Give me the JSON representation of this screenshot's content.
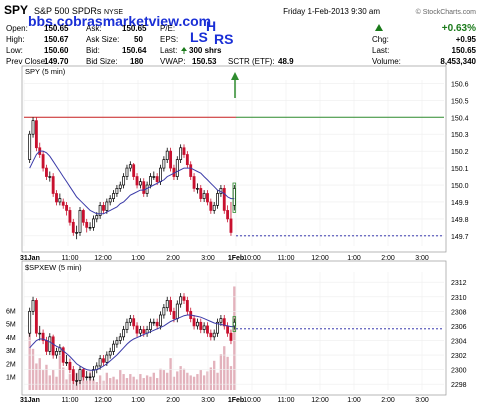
{
  "header": {
    "symbol": "SPY",
    "name": "S&P 500 SPDRs",
    "exchange": "NYSE",
    "date_label": "Friday  1-Feb-2013  9:30 am",
    "credit": "© StockCharts.com",
    "watermark": "bbs.cobrasmarketview.com",
    "stats": {
      "open_label": "Open:",
      "open": "150.65",
      "high_label": "High:",
      "high": "150.67",
      "low_label": "Low:",
      "low": "150.60",
      "prev_close_label": "Prev Close:",
      "prev_close": "149.70",
      "ask_label": "Ask:",
      "ask": "150.65",
      "ask_size_label": "Ask Size:",
      "ask_size": "50",
      "bid_label": "Bid:",
      "bid": "150.64",
      "bid_size_label": "Bid Size:",
      "bid_size": "180",
      "pe_label": "P/E:",
      "pe": "",
      "eps_label": "EPS:",
      "eps": "",
      "last_shares_label": "Last:",
      "last_shares": "300 shrs",
      "vwap_label": "VWAP:",
      "vwap": "150.53",
      "sctr_label": "SCTR (ETF):",
      "sctr": "48.9",
      "change_pct": "+0.63%",
      "chg_label": "Chg:",
      "chg": "+0.95",
      "last_label": "Last:",
      "last": "150.65",
      "volume_label": "Volume:",
      "volume": "8,453,340"
    }
  },
  "colors": {
    "up": "#000000",
    "down": "#c8102e",
    "ma": "#3a3aa8",
    "prev_close_line": "#c82020",
    "future_level": "#1a1aa0",
    "arrow": "#2e8b2e",
    "watermark": "#1a2fd6",
    "change": "#1a7a1a"
  },
  "chart_data": [
    {
      "type": "candlestick",
      "title": "SPY (5 min)",
      "ylim": [
        149.64,
        150.62
      ],
      "yticks": [
        149.7,
        149.8,
        149.9,
        150.0,
        150.1,
        150.2,
        150.3,
        150.4,
        150.5,
        150.6
      ],
      "x_tick_labels": [
        "31Jan",
        "11:00",
        "12:00",
        "1:00",
        "2:00",
        "3:00",
        "1Feb",
        "10:00",
        "11:00",
        "12:00",
        "1:00",
        "2:00",
        "3:00"
      ],
      "prev_close": 150.4,
      "future_level": 149.7,
      "annotations": [
        "LS",
        "H",
        "RS"
      ],
      "open": [
        150.15,
        150.3,
        150.38,
        150.22,
        150.18,
        150.1,
        150.05,
        150.05,
        149.95,
        149.9,
        149.9,
        149.88,
        149.85,
        149.78,
        149.72,
        149.72,
        149.85,
        149.78,
        149.75,
        149.75,
        149.8,
        149.82,
        149.88,
        149.85,
        149.9,
        149.92,
        149.95,
        149.98,
        150.0,
        150.05,
        150.1,
        150.12,
        150.05,
        150.0,
        150.02,
        149.95,
        150.0,
        150.05,
        150.05,
        150.02,
        150.1,
        150.15,
        150.2,
        150.1,
        150.05,
        150.15,
        150.22,
        150.18,
        150.12,
        150.05,
        149.98,
        149.98,
        149.92,
        149.95,
        149.9,
        149.85,
        149.88,
        149.95,
        149.98,
        149.85,
        149.8,
        149.88
      ],
      "close": [
        150.3,
        150.38,
        150.22,
        150.18,
        150.1,
        150.05,
        150.05,
        149.95,
        149.9,
        149.92,
        149.88,
        149.85,
        149.78,
        149.72,
        149.72,
        149.85,
        149.78,
        149.75,
        149.75,
        149.8,
        149.82,
        149.88,
        149.85,
        149.9,
        149.92,
        149.95,
        149.98,
        150.0,
        150.05,
        150.1,
        150.12,
        150.05,
        150.0,
        150.02,
        149.95,
        150.0,
        150.05,
        150.05,
        150.02,
        150.1,
        150.15,
        150.2,
        150.1,
        150.05,
        150.15,
        150.22,
        150.18,
        150.12,
        150.05,
        149.98,
        149.98,
        149.92,
        149.95,
        149.9,
        149.85,
        149.88,
        149.95,
        149.98,
        149.85,
        149.8,
        149.72,
        149.98
      ],
      "high": [
        150.32,
        150.4,
        150.4,
        150.25,
        150.2,
        150.12,
        150.08,
        150.07,
        149.97,
        149.95,
        149.92,
        149.9,
        149.87,
        149.8,
        149.76,
        149.87,
        149.86,
        149.8,
        149.78,
        149.82,
        149.84,
        149.9,
        149.9,
        149.92,
        149.94,
        149.97,
        150.0,
        150.02,
        150.07,
        150.12,
        150.14,
        150.13,
        150.07,
        150.04,
        150.04,
        150.02,
        150.07,
        150.08,
        150.07,
        150.12,
        150.17,
        150.22,
        150.22,
        150.12,
        150.17,
        150.24,
        150.24,
        150.2,
        150.14,
        150.07,
        150.01,
        150.0,
        149.97,
        149.97,
        149.92,
        149.9,
        149.97,
        150.0,
        150.0,
        149.88,
        149.9,
        150.0
      ],
      "low": [
        150.13,
        150.28,
        150.2,
        150.16,
        150.08,
        150.03,
        150.02,
        149.93,
        149.88,
        149.88,
        149.86,
        149.82,
        149.76,
        149.7,
        149.68,
        149.7,
        149.76,
        149.72,
        149.73,
        149.73,
        149.78,
        149.8,
        149.83,
        149.83,
        149.88,
        149.9,
        149.93,
        149.96,
        149.98,
        150.03,
        150.08,
        150.03,
        149.98,
        149.98,
        149.93,
        149.93,
        149.98,
        150.03,
        150.0,
        150.0,
        150.08,
        150.13,
        150.08,
        150.03,
        150.03,
        150.13,
        150.16,
        150.1,
        150.03,
        149.96,
        149.95,
        149.9,
        149.9,
        149.88,
        149.83,
        149.83,
        149.86,
        149.93,
        149.83,
        149.78,
        149.7,
        149.85
      ],
      "moving_average": [
        150.1,
        150.14,
        150.18,
        150.2,
        150.2,
        150.19,
        150.17,
        150.14,
        150.11,
        150.08,
        150.05,
        150.02,
        149.99,
        149.96,
        149.93,
        149.91,
        149.89,
        149.87,
        149.85,
        149.84,
        149.83,
        149.83,
        149.83,
        149.84,
        149.85,
        149.86,
        149.87,
        149.89,
        149.9,
        149.92,
        149.94,
        149.95,
        149.96,
        149.97,
        149.97,
        149.98,
        149.99,
        150.0,
        150.01,
        150.02,
        150.03,
        150.05,
        150.06,
        150.07,
        150.08,
        150.09,
        150.1,
        150.1,
        150.1,
        150.09,
        150.08,
        150.07,
        150.05,
        150.03,
        150.01,
        149.99,
        149.97,
        149.96,
        149.95,
        149.93,
        149.92,
        149.92
      ]
    },
    {
      "type": "candlestick",
      "title": "$SPXEW (5 min)",
      "ylim": [
        2297.2,
        2313.4
      ],
      "yticks": [
        2298,
        2300,
        2302,
        2304,
        2306,
        2308,
        2310,
        2312
      ],
      "volume_tick_labels": [
        "1M",
        "2M",
        "3M",
        "4M",
        "5M",
        "6M"
      ],
      "volume_max": 8000000,
      "future_level": 2305.6,
      "volume": [
        5200000,
        3100000,
        2000000,
        2400000,
        1500000,
        1900000,
        1100000,
        1500000,
        1000000,
        2600000,
        1700000,
        800000,
        1200000,
        900000,
        1300000,
        900000,
        1600000,
        700000,
        1400000,
        800000,
        600000,
        1100000,
        700000,
        1300000,
        900000,
        1000000,
        800000,
        1500000,
        1200000,
        900000,
        1200000,
        1000000,
        800000,
        1200000,
        900000,
        1100000,
        1000000,
        1300000,
        900000,
        1600000,
        1500000,
        1300000,
        2400000,
        1000000,
        1400000,
        1800000,
        1600000,
        1300000,
        1100000,
        1000000,
        1200000,
        1500000,
        1100000,
        1400000,
        1700000,
        2200000,
        1300000,
        2700000,
        3300000,
        2500000,
        1800000,
        7800000
      ],
      "open": [
        2305.0,
        2308.0,
        2309.5,
        2305.0,
        2305.0,
        2304.0,
        2302.5,
        2304.5,
        2302.0,
        2302.5,
        2303.0,
        2301.0,
        2301.0,
        2300.0,
        2298.5,
        2298.5,
        2300.0,
        2299.0,
        2299.0,
        2299.0,
        2300.0,
        2300.5,
        2301.5,
        2301.0,
        2302.0,
        2302.5,
        2303.5,
        2304.0,
        2304.5,
        2305.5,
        2306.5,
        2307.0,
        2306.0,
        2305.0,
        2305.5,
        2305.0,
        2305.5,
        2306.5,
        2306.5,
        2306.0,
        2307.5,
        2308.5,
        2309.5,
        2308.0,
        2307.0,
        2309.0,
        2310.0,
        2309.5,
        2308.0,
        2307.0,
        2306.0,
        2306.5,
        2305.5,
        2306.0,
        2305.0,
        2304.5,
        2305.0,
        2306.5,
        2307.0,
        2306.0,
        2305.0,
        2306.0
      ],
      "close": [
        2308.0,
        2309.5,
        2305.0,
        2305.0,
        2304.0,
        2302.5,
        2304.5,
        2302.0,
        2302.5,
        2303.0,
        2301.0,
        2301.0,
        2300.0,
        2298.5,
        2298.5,
        2300.0,
        2299.0,
        2299.0,
        2299.0,
        2300.0,
        2300.5,
        2301.5,
        2301.0,
        2302.0,
        2302.5,
        2303.5,
        2304.0,
        2304.5,
        2305.5,
        2306.5,
        2307.0,
        2306.0,
        2305.0,
        2305.5,
        2305.0,
        2305.5,
        2306.5,
        2306.5,
        2306.0,
        2307.5,
        2308.5,
        2309.5,
        2308.0,
        2307.0,
        2309.0,
        2310.0,
        2309.5,
        2308.0,
        2307.0,
        2306.0,
        2306.5,
        2305.5,
        2306.0,
        2305.0,
        2304.5,
        2305.0,
        2306.5,
        2307.0,
        2306.0,
        2305.0,
        2304.0,
        2306.5
      ],
      "high": [
        2308.5,
        2310.0,
        2309.8,
        2306.0,
        2305.5,
        2304.5,
        2305.0,
        2304.8,
        2303.0,
        2303.5,
        2303.2,
        2302.0,
        2301.5,
        2300.5,
        2299.5,
        2300.5,
        2300.2,
        2299.8,
        2299.5,
        2300.5,
        2301.0,
        2302.0,
        2302.0,
        2302.5,
        2303.0,
        2304.0,
        2304.5,
        2305.0,
        2306.0,
        2307.0,
        2307.5,
        2307.5,
        2306.5,
        2306.0,
        2306.0,
        2306.0,
        2307.0,
        2307.0,
        2307.0,
        2308.0,
        2309.0,
        2310.0,
        2310.0,
        2308.5,
        2309.5,
        2310.5,
        2310.5,
        2310.0,
        2308.5,
        2307.5,
        2307.0,
        2307.0,
        2306.5,
        2306.5,
        2305.5,
        2305.5,
        2307.0,
        2307.5,
        2307.5,
        2306.5,
        2305.5,
        2307.0
      ],
      "low": [
        2304.5,
        2307.5,
        2304.5,
        2304.0,
        2303.5,
        2302.0,
        2302.0,
        2301.5,
        2301.5,
        2302.0,
        2300.5,
        2300.5,
        2299.5,
        2298.0,
        2297.8,
        2298.0,
        2298.5,
        2298.5,
        2298.5,
        2298.5,
        2299.5,
        2300.0,
        2300.5,
        2300.5,
        2301.5,
        2302.0,
        2303.0,
        2303.5,
        2304.0,
        2305.0,
        2306.0,
        2305.5,
        2304.5,
        2304.5,
        2304.5,
        2304.5,
        2305.0,
        2306.0,
        2305.5,
        2305.5,
        2307.0,
        2308.0,
        2307.5,
        2306.5,
        2306.5,
        2308.5,
        2309.0,
        2307.5,
        2306.5,
        2305.5,
        2305.5,
        2305.0,
        2305.0,
        2304.5,
        2304.0,
        2304.0,
        2304.5,
        2306.0,
        2305.5,
        2304.5,
        2303.5,
        2305.5
      ],
      "moving_average": [
        2303.0,
        2303.5,
        2304.0,
        2304.2,
        2304.2,
        2304.0,
        2303.8,
        2303.5,
        2303.2,
        2303.0,
        2302.6,
        2302.2,
        2301.8,
        2301.3,
        2300.8,
        2300.5,
        2300.2,
        2300.0,
        2299.9,
        2299.9,
        2300.0,
        2300.2,
        2300.5,
        2300.8,
        2301.2,
        2301.6,
        2302.0,
        2302.5,
        2303.0,
        2303.5,
        2303.9,
        2304.2,
        2304.4,
        2304.6,
        2304.8,
        2305.0,
        2305.2,
        2305.4,
        2305.6,
        2305.8,
        2306.0,
        2306.3,
        2306.6,
        2306.8,
        2307.0,
        2307.2,
        2307.4,
        2307.5,
        2307.5,
        2307.4,
        2307.3,
        2307.2,
        2307.0,
        2306.8,
        2306.6,
        2306.4,
        2306.3,
        2306.2,
        2306.1,
        2306.0,
        2305.9,
        2305.9
      ]
    }
  ]
}
